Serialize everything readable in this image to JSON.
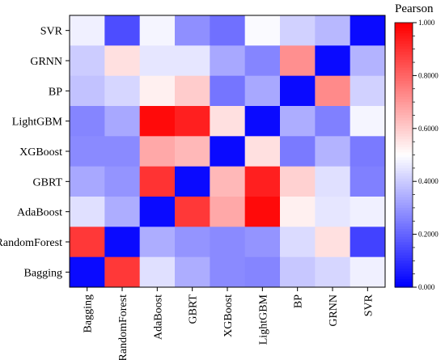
{
  "chart_data": {
    "type": "heatmap",
    "rows": [
      "SVR",
      "GRNN",
      "BP",
      "LightGBM",
      "XGBoost",
      "GBRT",
      "AdaBoost",
      "RandomForest",
      "Bagging"
    ],
    "columns": [
      "Bagging",
      "RandomForest",
      "AdaBoost",
      "GBRT",
      "XGBoost",
      "LightGBM",
      "BP",
      "GRNN",
      "SVR"
    ],
    "values": [
      [
        0.47,
        0.15,
        0.48,
        0.28,
        0.22,
        0.49,
        0.41,
        0.36,
        0.02
      ],
      [
        0.4,
        0.56,
        0.45,
        0.45,
        0.33,
        0.26,
        0.72,
        0.02,
        0.35
      ],
      [
        0.38,
        0.42,
        0.53,
        0.6,
        0.23,
        0.33,
        0.02,
        0.73,
        0.41
      ],
      [
        0.26,
        0.33,
        0.98,
        0.94,
        0.56,
        0.02,
        0.34,
        0.25,
        0.48
      ],
      [
        0.27,
        0.27,
        0.67,
        0.64,
        0.02,
        0.56,
        0.24,
        0.35,
        0.24
      ],
      [
        0.33,
        0.29,
        0.9,
        0.02,
        0.64,
        0.94,
        0.59,
        0.44,
        0.25
      ],
      [
        0.44,
        0.34,
        0.02,
        0.89,
        0.67,
        0.98,
        0.53,
        0.45,
        0.47
      ],
      [
        0.89,
        0.02,
        0.34,
        0.29,
        0.27,
        0.29,
        0.43,
        0.56,
        0.13
      ],
      [
        0.02,
        0.89,
        0.44,
        0.34,
        0.27,
        0.26,
        0.39,
        0.42,
        0.47
      ]
    ],
    "colorbar": {
      "title": "Pearson",
      "range": [
        0,
        1
      ],
      "ticks": [
        "0.000",
        "0.2000",
        "0.4000",
        "0.6000",
        "0.8000",
        "1.000"
      ],
      "tick_values": [
        0,
        0.2,
        0.4,
        0.6,
        0.8,
        1.0
      ],
      "colormap": [
        "#0000ff",
        "#ffffff",
        "#ff0000"
      ]
    }
  }
}
